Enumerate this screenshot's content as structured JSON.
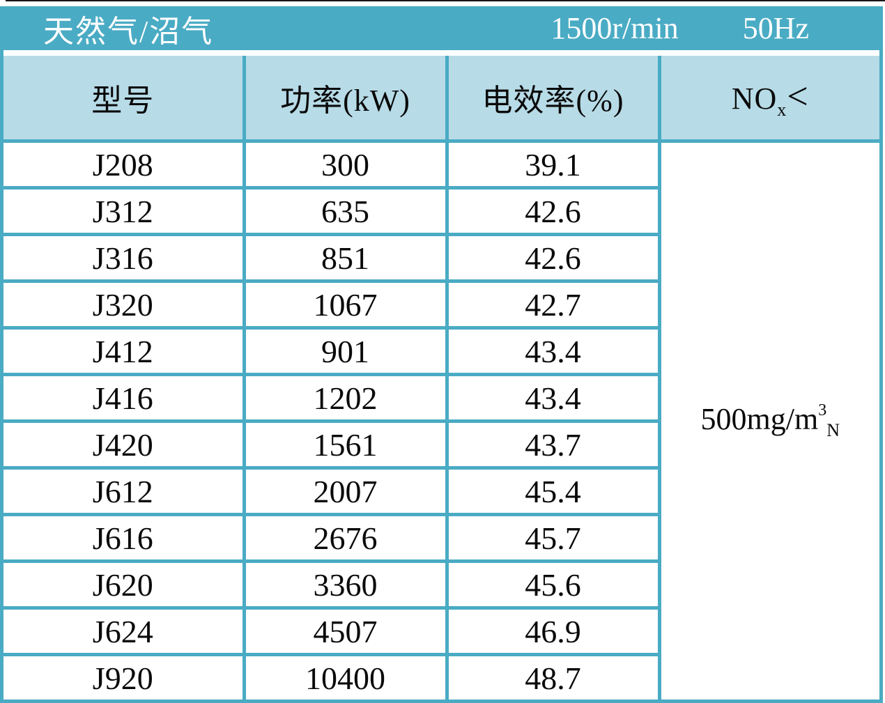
{
  "title_bar": {
    "fuel_type": "天然气/沼气",
    "speed": "1500r/min",
    "frequency": "50Hz"
  },
  "table": {
    "headers": {
      "model": "型号",
      "power": "功率(kW)",
      "efficiency": "电效率(%)"
    },
    "nox_header": {
      "base": "NO",
      "sub": "x",
      "symbol": "<"
    },
    "rows": [
      {
        "model": "J208",
        "power": "300",
        "efficiency": "39.1"
      },
      {
        "model": "J312",
        "power": "635",
        "efficiency": "42.6"
      },
      {
        "model": "J316",
        "power": "851",
        "efficiency": "42.6"
      },
      {
        "model": "J320",
        "power": "1067",
        "efficiency": "42.7"
      },
      {
        "model": "J412",
        "power": "901",
        "efficiency": "43.4"
      },
      {
        "model": "J416",
        "power": "1202",
        "efficiency": "43.4"
      },
      {
        "model": "J420",
        "power": "1561",
        "efficiency": "43.7"
      },
      {
        "model": "J612",
        "power": "2007",
        "efficiency": "45.4"
      },
      {
        "model": "J616",
        "power": "2676",
        "efficiency": "45.7"
      },
      {
        "model": "J620",
        "power": "3360",
        "efficiency": "45.6"
      },
      {
        "model": "J624",
        "power": "4507",
        "efficiency": "46.9"
      },
      {
        "model": "J920",
        "power": "10400",
        "efficiency": "48.7"
      }
    ],
    "nox_limit": {
      "base": "500mg/m",
      "sup": "3",
      "sub": "N"
    }
  },
  "colors": {
    "teal": "#4AABC4",
    "light_blue": "#B7DBE7",
    "top_rule": "#171717"
  }
}
